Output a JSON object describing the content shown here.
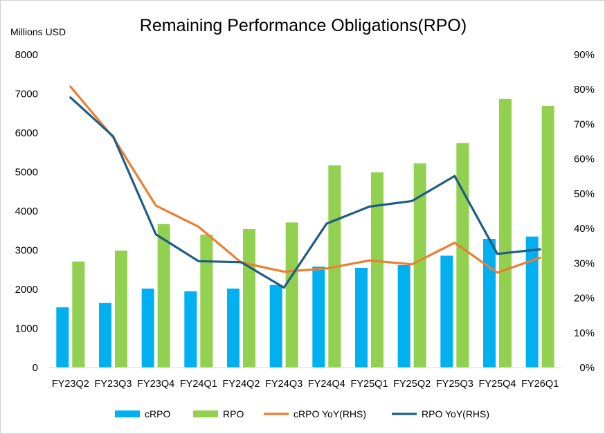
{
  "chart_data": {
    "type": "bar",
    "title": "Remaining Performance Obligations(RPO)",
    "ylabel": "Millions USD",
    "ylim": [
      0,
      8000
    ],
    "yticks": [
      "0",
      "1000",
      "2000",
      "3000",
      "4000",
      "5000",
      "6000",
      "7000",
      "8000"
    ],
    "y2lim": [
      0,
      90
    ],
    "y2ticks": [
      "0%",
      "10%",
      "20%",
      "30%",
      "40%",
      "50%",
      "60%",
      "70%",
      "80%",
      "90%"
    ],
    "categories": [
      "FY23Q2",
      "FY23Q3",
      "FY23Q4",
      "FY24Q1",
      "FY24Q2",
      "FY24Q3",
      "FY24Q4",
      "FY25Q1",
      "FY25Q2",
      "FY25Q3",
      "FY25Q4",
      "FY26Q1"
    ],
    "grid": false,
    "legend": "bottom",
    "series": [
      {
        "name": "cRPO",
        "type": "bar",
        "axis": "left",
        "color": "#00b0f0",
        "values": [
          1540,
          1650,
          2020,
          1950,
          2020,
          2110,
          2580,
          2550,
          2620,
          2860,
          3290,
          3350
        ]
      },
      {
        "name": "RPO",
        "type": "bar",
        "axis": "left",
        "color": "#92d050",
        "values": [
          2710,
          2990,
          3670,
          3400,
          3540,
          3710,
          5170,
          4990,
          5220,
          5740,
          6870,
          6690
        ]
      },
      {
        "name": "cRPO YoY(RHS)",
        "type": "line",
        "axis": "right",
        "color": "#ed7d31",
        "values": [
          80.8,
          66.2,
          46.6,
          40.5,
          30.2,
          27.6,
          28.5,
          30.8,
          29.7,
          35.9,
          27.3,
          31.6
        ]
      },
      {
        "name": "RPO YoY(RHS)",
        "type": "line",
        "axis": "right",
        "color": "#1f5c85",
        "values": [
          77.7,
          66.5,
          38.3,
          30.6,
          30.3,
          23.0,
          41.4,
          46.3,
          47.9,
          55.1,
          32.7,
          34.0
        ]
      }
    ]
  }
}
